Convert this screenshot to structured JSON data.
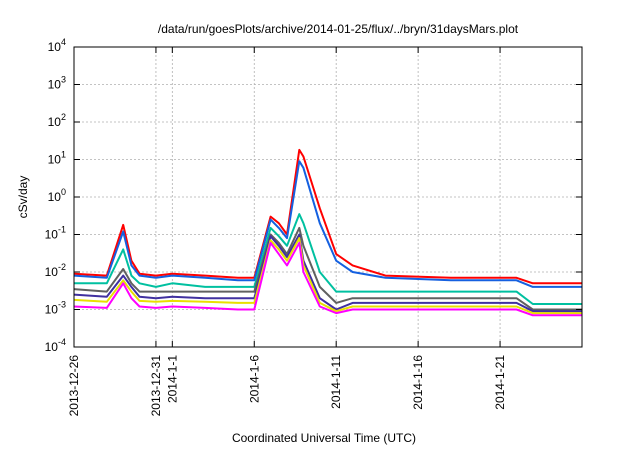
{
  "chart_data": {
    "type": "line",
    "title": "/data/run/goesPlots/archive/2014-01-25/flux/../bryn/31daysMars.plot",
    "xlabel": "Coordinated Universal Time (UTC)",
    "ylabel": "cSv/day",
    "xlim": [
      "2013-12-26",
      "2014-01-26"
    ],
    "ylim": [
      0.0001,
      10000
    ],
    "yscale": "log",
    "grid": true,
    "x_ticks": [
      "2013-12-26",
      "2013-12-31",
      "2014-1-1",
      "2014-1-6",
      "2014-1-11",
      "2014-1-16",
      "2014-1-21"
    ],
    "y_ticks": [
      {
        "value": 0.0001,
        "base": "10",
        "exp": "-4"
      },
      {
        "value": 0.001,
        "base": "10",
        "exp": "-3"
      },
      {
        "value": 0.01,
        "base": "10",
        "exp": "-2"
      },
      {
        "value": 0.1,
        "base": "10",
        "exp": "-1"
      },
      {
        "value": 1,
        "base": "10",
        "exp": "0"
      },
      {
        "value": 10,
        "base": "10",
        "exp": "1"
      },
      {
        "value": 100,
        "base": "10",
        "exp": "2"
      },
      {
        "value": 1000,
        "base": "10",
        "exp": "3"
      },
      {
        "value": 10000,
        "base": "10",
        "exp": "4"
      }
    ],
    "x_dates": [
      "2013-12-26",
      "2013-12-28",
      "2013-12-29",
      "2013-12-29T12:00",
      "2013-12-30",
      "2013-12-31",
      "2014-01-01",
      "2014-01-03",
      "2014-01-05",
      "2014-01-06",
      "2014-01-07",
      "2014-01-07T12:00",
      "2014-01-08",
      "2014-01-08T18:00",
      "2014-01-09",
      "2014-01-10",
      "2014-01-11",
      "2014-01-12",
      "2014-01-14",
      "2014-01-18",
      "2014-01-21",
      "2014-01-22",
      "2014-01-23",
      "2014-01-24",
      "2014-01-26"
    ],
    "series": [
      {
        "color": "#ff0000",
        "values": [
          0.009,
          0.008,
          0.18,
          0.02,
          0.009,
          0.008,
          0.009,
          0.008,
          0.007,
          0.007,
          0.3,
          0.2,
          0.1,
          18,
          12,
          0.5,
          0.03,
          0.015,
          0.008,
          0.007,
          0.007,
          0.007,
          0.005,
          0.005,
          0.005
        ]
      },
      {
        "color": "#1560e0",
        "values": [
          0.008,
          0.007,
          0.12,
          0.015,
          0.008,
          0.007,
          0.008,
          0.007,
          0.006,
          0.006,
          0.25,
          0.15,
          0.08,
          9,
          6,
          0.2,
          0.02,
          0.01,
          0.007,
          0.006,
          0.006,
          0.006,
          0.004,
          0.004,
          0.004
        ]
      },
      {
        "color": "#00c0a0",
        "values": [
          0.005,
          0.005,
          0.04,
          0.008,
          0.005,
          0.004,
          0.005,
          0.004,
          0.004,
          0.004,
          0.15,
          0.09,
          0.05,
          0.35,
          0.2,
          0.01,
          0.003,
          0.003,
          0.003,
          0.003,
          0.003,
          0.003,
          0.0014,
          0.0014,
          0.0014
        ]
      },
      {
        "color": "#606060",
        "values": [
          0.0035,
          0.003,
          0.012,
          0.005,
          0.003,
          0.003,
          0.003,
          0.003,
          0.003,
          0.003,
          0.1,
          0.06,
          0.03,
          0.15,
          0.05,
          0.004,
          0.0015,
          0.002,
          0.002,
          0.002,
          0.002,
          0.002,
          0.001,
          0.001,
          0.001
        ]
      },
      {
        "color": "#4030a0",
        "values": [
          0.0025,
          0.0022,
          0.008,
          0.004,
          0.0022,
          0.002,
          0.0022,
          0.002,
          0.002,
          0.002,
          0.09,
          0.05,
          0.025,
          0.1,
          0.02,
          0.002,
          0.001,
          0.0015,
          0.0015,
          0.0015,
          0.0015,
          0.0015,
          0.0009,
          0.0009,
          0.0009
        ]
      },
      {
        "color": "#e8e000",
        "values": [
          0.0018,
          0.0016,
          0.006,
          0.003,
          0.0017,
          0.0016,
          0.0017,
          0.0016,
          0.0015,
          0.0015,
          0.07,
          0.04,
          0.02,
          0.08,
          0.015,
          0.0015,
          0.0009,
          0.0012,
          0.0012,
          0.0012,
          0.0012,
          0.0012,
          0.0008,
          0.0008,
          0.0008
        ]
      },
      {
        "color": "#ff00ff",
        "values": [
          0.0012,
          0.0011,
          0.005,
          0.002,
          0.0012,
          0.0011,
          0.0012,
          0.0011,
          0.001,
          0.001,
          0.06,
          0.03,
          0.015,
          0.06,
          0.01,
          0.0012,
          0.0008,
          0.001,
          0.001,
          0.001,
          0.001,
          0.001,
          0.0007,
          0.0007,
          0.0007
        ]
      }
    ]
  }
}
